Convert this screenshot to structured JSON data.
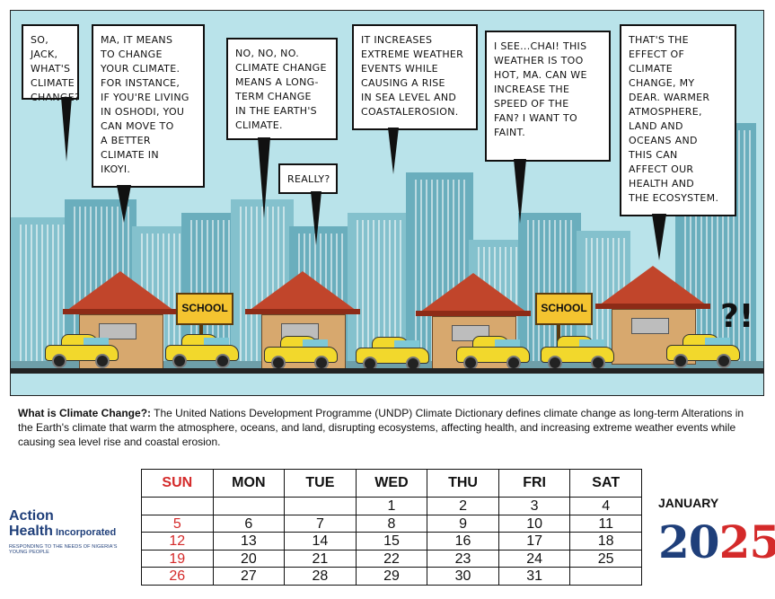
{
  "comic": {
    "bubbles": [
      {
        "id": 1,
        "text": "SO, JACK,\nWHAT'S\nCLIMATE\nCHANGE?"
      },
      {
        "id": 2,
        "text": "MA, IT MEANS\nTO CHANGE\nYOUR CLIMATE.\nFOR INSTANCE,\nIF YOU'RE LIVING\nIN OSHODI, YOU\nCAN MOVE TO\nA BETTER\nCLIMATE IN\nIKOYI."
      },
      {
        "id": 3,
        "text": "NO, NO, NO.\nCLIMATE CHANGE\nMEANS A LONG-\nTERM CHANGE\nIN THE EARTH'S\nCLIMATE."
      },
      {
        "id": 4,
        "text": "REALLY?"
      },
      {
        "id": 5,
        "text": "IT INCREASES\nEXTREME WEATHER\nEVENTS WHILE\nCAUSING A RISE\nIN SEA LEVEL AND\nCOASTALEROSION."
      },
      {
        "id": 6,
        "text": "I SEE...CHAI! THIS\nWEATHER IS TOO\nHOT, MA. CAN WE\n INCREASE THE\nSPEED OF THE\nFAN? I WANT TO\nFAINT."
      },
      {
        "id": 7,
        "text": "THAT'S THE\nEFFECT OF\nCLIMATE\nCHANGE, MY\nDEAR. WARMER\nATMOSPHERE,\nLAND AND\nOCEANS AND\nTHIS CAN\nAFFECT OUR\nHEALTH AND\nTHE ECOSYSTEM."
      }
    ],
    "school_sign_left": "SCHOOL",
    "school_sign_right": "SCHOOL",
    "exclamation": "?!",
    "colors": {
      "sky": "#b9e3ea",
      "buildings": "#6aaebd",
      "roof": "#c1452b",
      "car": "#f2d82c",
      "sign": "#f4c430"
    }
  },
  "definition": {
    "lead": "What is Climate Change?:",
    "body": " The United Nations Development Programme (UNDP) Climate Dictionary defines climate change as long-term Alterations in the Earth's climate that warm the atmosphere, oceans, and land, disrupting ecosystems, affecting health, and increasing extreme weather events while causing sea level rise and coastal erosion."
  },
  "calendar": {
    "month": "JANUARY",
    "year_part1": "20",
    "year_part2": "25",
    "days": [
      "SUN",
      "MON",
      "TUE",
      "WED",
      "THU",
      "FRI",
      "SAT"
    ],
    "weeks": [
      [
        "",
        "",
        "",
        "1",
        "2",
        "3",
        "4"
      ],
      [
        "5",
        "6",
        "7",
        "8",
        "9",
        "10",
        "11"
      ],
      [
        "12",
        "13",
        "14",
        "15",
        "16",
        "17",
        "18"
      ],
      [
        "19",
        "20",
        "21",
        "22",
        "23",
        "24",
        "25"
      ],
      [
        "26",
        "27",
        "28",
        "29",
        "30",
        "31",
        ""
      ]
    ],
    "colors": {
      "sunday": "#d42a2a",
      "brand_blue": "#1f3f7a"
    }
  },
  "logo": {
    "line1": "Action",
    "line2": "Health",
    "line2_suffix": " Incorporated",
    "tagline": "RESPONDING TO THE NEEDS OF NIGERIA'S YOUNG PEOPLE"
  }
}
